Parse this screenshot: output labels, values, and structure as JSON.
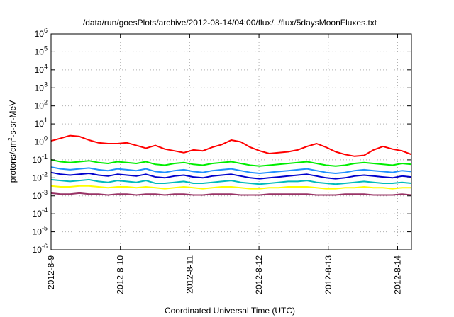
{
  "chart_data": {
    "type": "line",
    "title": "/data/run/goesPlots/archive/2012-08-14/04:00/flux/../flux/5daysMoonFluxes.txt",
    "xlabel": "Coordinated Universal Time (UTC)",
    "ylabel": {
      "pre": "protons/cm",
      "sup": "2",
      "post": "-s-sr-MeV"
    },
    "yscale": "log",
    "ylim_exp": [
      -6,
      6
    ],
    "y_tick_exponents": [
      -6,
      -5,
      -4,
      -3,
      -2,
      -1,
      0,
      1,
      2,
      3,
      4,
      5,
      6
    ],
    "y_tick_base": "10",
    "x_ticks": [
      "2012-8-9",
      "2012-8-10",
      "2012-8-11",
      "2012-8-12",
      "2012-8-13",
      "2012-8-14"
    ],
    "x_range_days": [
      0,
      5.2
    ],
    "grid": "dotted",
    "legend": "none",
    "series": [
      {
        "color": "#ff0000",
        "log10_flux": [
          0.05,
          0.2,
          0.35,
          0.3,
          0.1,
          -0.05,
          -0.1,
          -0.1,
          -0.05,
          -0.2,
          -0.35,
          -0.2,
          -0.4,
          -0.5,
          -0.6,
          -0.45,
          -0.5,
          -0.3,
          -0.15,
          0.1,
          0.0,
          -0.3,
          -0.5,
          -0.65,
          -0.6,
          -0.55,
          -0.45,
          -0.25,
          -0.1,
          -0.3,
          -0.55,
          -0.7,
          -0.8,
          -0.75,
          -0.45,
          -0.25,
          -0.4,
          -0.5,
          -0.7
        ]
      },
      {
        "color": "#00ee00",
        "log10_flux": [
          -1.0,
          -1.1,
          -1.15,
          -1.1,
          -1.05,
          -1.15,
          -1.2,
          -1.1,
          -1.15,
          -1.2,
          -1.1,
          -1.25,
          -1.3,
          -1.2,
          -1.15,
          -1.25,
          -1.3,
          -1.2,
          -1.15,
          -1.1,
          -1.2,
          -1.3,
          -1.35,
          -1.3,
          -1.25,
          -1.2,
          -1.15,
          -1.1,
          -1.2,
          -1.3,
          -1.35,
          -1.3,
          -1.2,
          -1.15,
          -1.2,
          -1.25,
          -1.3,
          -1.2,
          -1.25
        ]
      },
      {
        "color": "#1e90ff",
        "log10_flux": [
          -1.4,
          -1.5,
          -1.55,
          -1.5,
          -1.45,
          -1.55,
          -1.6,
          -1.5,
          -1.55,
          -1.6,
          -1.5,
          -1.65,
          -1.7,
          -1.6,
          -1.55,
          -1.65,
          -1.7,
          -1.6,
          -1.55,
          -1.5,
          -1.6,
          -1.7,
          -1.75,
          -1.7,
          -1.65,
          -1.6,
          -1.55,
          -1.5,
          -1.6,
          -1.7,
          -1.75,
          -1.7,
          -1.6,
          -1.55,
          -1.6,
          -1.65,
          -1.7,
          -1.6,
          -1.65
        ]
      },
      {
        "color": "#0000cc",
        "log10_flux": [
          -1.7,
          -1.8,
          -1.85,
          -1.8,
          -1.75,
          -1.85,
          -1.9,
          -1.8,
          -1.85,
          -1.9,
          -1.8,
          -1.95,
          -2.0,
          -1.9,
          -1.85,
          -1.95,
          -2.0,
          -1.9,
          -1.85,
          -1.8,
          -1.9,
          -2.0,
          -2.05,
          -2.0,
          -1.95,
          -1.9,
          -1.85,
          -1.8,
          -1.9,
          -2.0,
          -2.05,
          -2.0,
          -1.9,
          -1.85,
          -1.9,
          -1.95,
          -2.0,
          -1.9,
          -1.95
        ]
      },
      {
        "color": "#00bbbb",
        "log10_flux": [
          -2.1,
          -2.15,
          -2.2,
          -2.15,
          -2.1,
          -2.2,
          -2.25,
          -2.15,
          -2.2,
          -2.25,
          -2.15,
          -2.3,
          -2.3,
          -2.25,
          -2.2,
          -2.3,
          -2.3,
          -2.25,
          -2.2,
          -2.15,
          -2.25,
          -2.3,
          -2.35,
          -2.3,
          -2.25,
          -2.2,
          -2.2,
          -2.15,
          -2.25,
          -2.3,
          -2.35,
          -2.3,
          -2.25,
          -2.2,
          -2.25,
          -2.3,
          -2.3,
          -2.25,
          -2.3
        ]
      },
      {
        "color": "#ffff00",
        "log10_flux": [
          -2.45,
          -2.5,
          -2.5,
          -2.45,
          -2.45,
          -2.5,
          -2.55,
          -2.5,
          -2.5,
          -2.55,
          -2.5,
          -2.55,
          -2.6,
          -2.55,
          -2.5,
          -2.55,
          -2.6,
          -2.55,
          -2.5,
          -2.5,
          -2.55,
          -2.6,
          -2.6,
          -2.55,
          -2.55,
          -2.5,
          -2.5,
          -2.5,
          -2.55,
          -2.6,
          -2.6,
          -2.55,
          -2.55,
          -2.5,
          -2.55,
          -2.55,
          -2.6,
          -2.55,
          -2.55
        ]
      },
      {
        "color": "#993366",
        "log10_flux": [
          -2.85,
          -2.9,
          -2.9,
          -2.85,
          -2.9,
          -2.9,
          -2.95,
          -2.9,
          -2.9,
          -2.95,
          -2.9,
          -2.9,
          -2.95,
          -2.9,
          -2.9,
          -2.95,
          -2.95,
          -2.9,
          -2.9,
          -2.9,
          -2.95,
          -2.95,
          -2.95,
          -2.9,
          -2.9,
          -2.9,
          -2.9,
          -2.9,
          -2.95,
          -2.95,
          -2.95,
          -2.9,
          -2.9,
          -2.9,
          -2.95,
          -2.95,
          -2.95,
          -2.9,
          -2.95
        ]
      }
    ]
  }
}
